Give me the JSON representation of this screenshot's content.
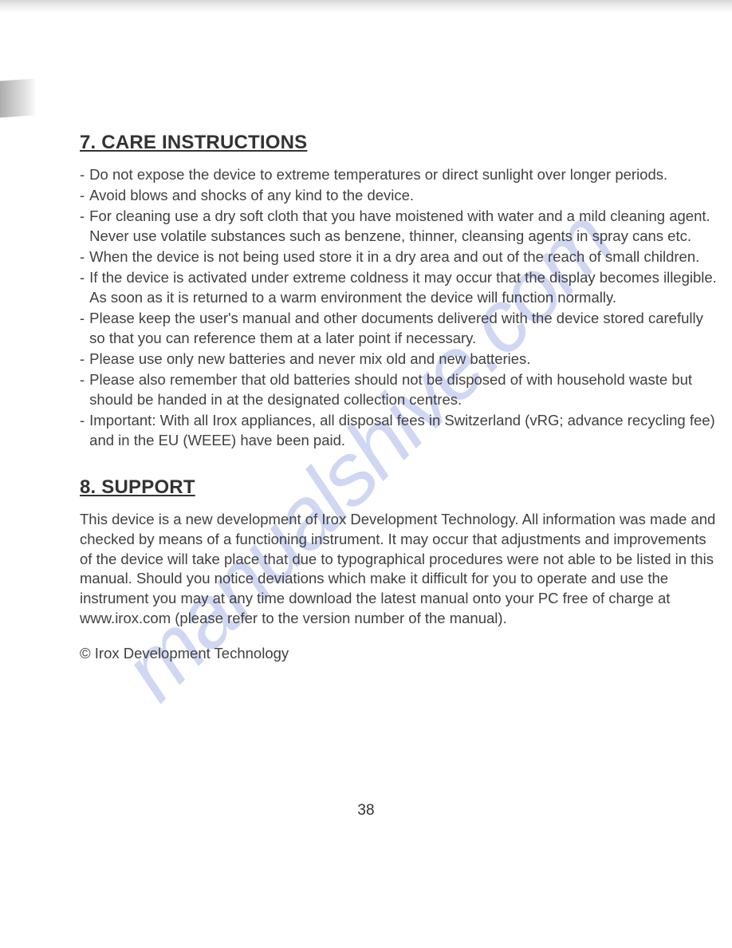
{
  "doc": {
    "text_color": "#3a3a3a",
    "background_color": "#ffffff",
    "body_fontsize": 18.5,
    "heading_fontsize": 24,
    "line_height": 1.35,
    "font_family": "Arial"
  },
  "watermark": {
    "text": "manualshive.com",
    "color": "#a9b8ea",
    "opacity": 0.55,
    "fontsize": 110,
    "rotation_deg": -45,
    "font_style": "italic"
  },
  "section7": {
    "heading": "7. CARE INSTRUCTIONS",
    "bullets": [
      "Do not expose the device to extreme temperatures or direct sunlight over longer periods.",
      "Avoid blows and shocks of any kind to the device.",
      "For cleaning use a dry soft cloth that you have moistened with water and a mild cleaning agent. Never use volatile substances such as benzene, thinner, cleansing agents in spray cans etc.",
      "When the device is not being used store it in a dry area and out of the reach of small children.",
      "If the device is activated under extreme coldness it may occur that the display becomes illegible. As soon as it is returned to a warm environment the device will function normally.",
      "Please keep the user's manual and other documents delivered with the device stored carefully so that you can reference them at a later point if necessary.",
      "Please use only new batteries and never mix old and new batteries.",
      "Please also remember that old batteries should not be disposed of with household waste but should be handed in at the designated collection centres.",
      "Important: With all Irox appliances, all disposal fees in Switzerland (vRG; advance recycling fee) and in the EU (WEEE) have been paid."
    ]
  },
  "section8": {
    "heading": "8. SUPPORT",
    "paragraph": "This device is a new development of Irox Development Technology. All information was made and checked by means of a functioning instrument. It may occur that adjustments and improvements of the device will take place that due to typographical procedures were not able to be listed in this manual. Should you notice deviations which make it difficult for you to operate and use the instrument you may at any time download the latest manual onto your PC free of charge at www.irox.com (please refer to the version number of the manual)."
  },
  "copyright": "© Irox Development Technology",
  "page_number": "38"
}
